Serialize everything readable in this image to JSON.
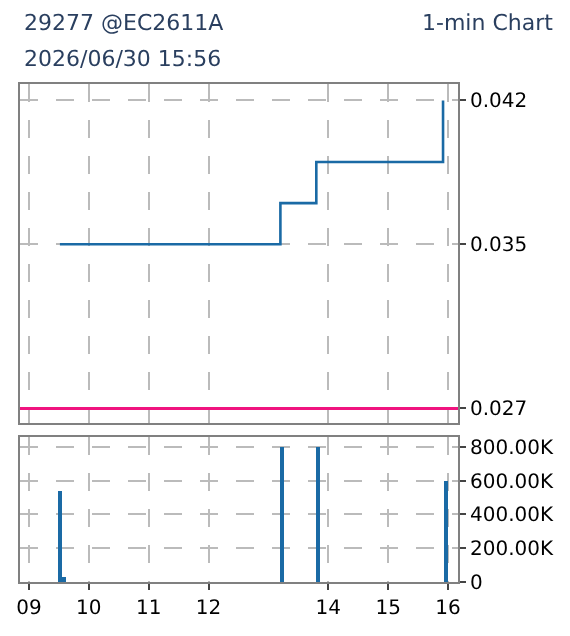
{
  "chart_data": [
    {
      "type": "step",
      "title": "29277 @EC2611A",
      "subtitle": "1-min Chart",
      "annotations": [
        "2026/06/30 15:56"
      ],
      "x": [
        9.517,
        13.2,
        13.8,
        15.917
      ],
      "series": [
        {
          "color": "#1a6aa5",
          "values": [
            0.035,
            0.037,
            0.039,
            0.042
          ]
        }
      ],
      "xlim": [
        8.85,
        16.167
      ],
      "xticks": [
        {
          "value": 9,
          "label": null
        },
        {
          "value": 10,
          "label": null
        },
        {
          "value": 11,
          "label": null
        },
        {
          "value": 12,
          "label": null
        },
        {
          "value": 14,
          "label": null
        },
        {
          "value": 15,
          "label": null
        },
        {
          "value": 16,
          "label": null
        }
      ],
      "ylim": [
        0.0263,
        0.0428
      ],
      "yticks": [
        0.027,
        0.035,
        0.042
      ],
      "ref_lines": [
        {
          "axis": "y",
          "value": 0.027,
          "color": "#f0147f"
        }
      ],
      "grid": true,
      "line_style": "solid",
      "marker": "none",
      "tick_labels": "y"
    },
    {
      "type": "bar",
      "x": [
        9.533,
        9.6,
        13.233,
        13.833,
        15.95
      ],
      "series": [
        {
          "color": "#1a6aa5",
          "values": [
            540000,
            30000,
            800000,
            800000,
            600000
          ]
        }
      ],
      "xlim": [
        8.85,
        16.167
      ],
      "xticks": [
        {
          "value": 9,
          "label": "09"
        },
        {
          "value": 10,
          "label": "10"
        },
        {
          "value": 11,
          "label": "11"
        },
        {
          "value": 12,
          "label": "12"
        },
        {
          "value": 14,
          "label": "14"
        },
        {
          "value": 15,
          "label": "15"
        },
        {
          "value": 16,
          "label": "16"
        }
      ],
      "ylim": [
        0,
        860000
      ],
      "yticks": [
        {
          "value": 0,
          "label": "0"
        },
        {
          "value": 200000,
          "label": "200.00K"
        },
        {
          "value": 400000,
          "label": "400.00K"
        },
        {
          "value": 600000,
          "label": "600.00K"
        },
        {
          "value": 800000,
          "label": "800.00K"
        }
      ],
      "grid": true
    }
  ]
}
